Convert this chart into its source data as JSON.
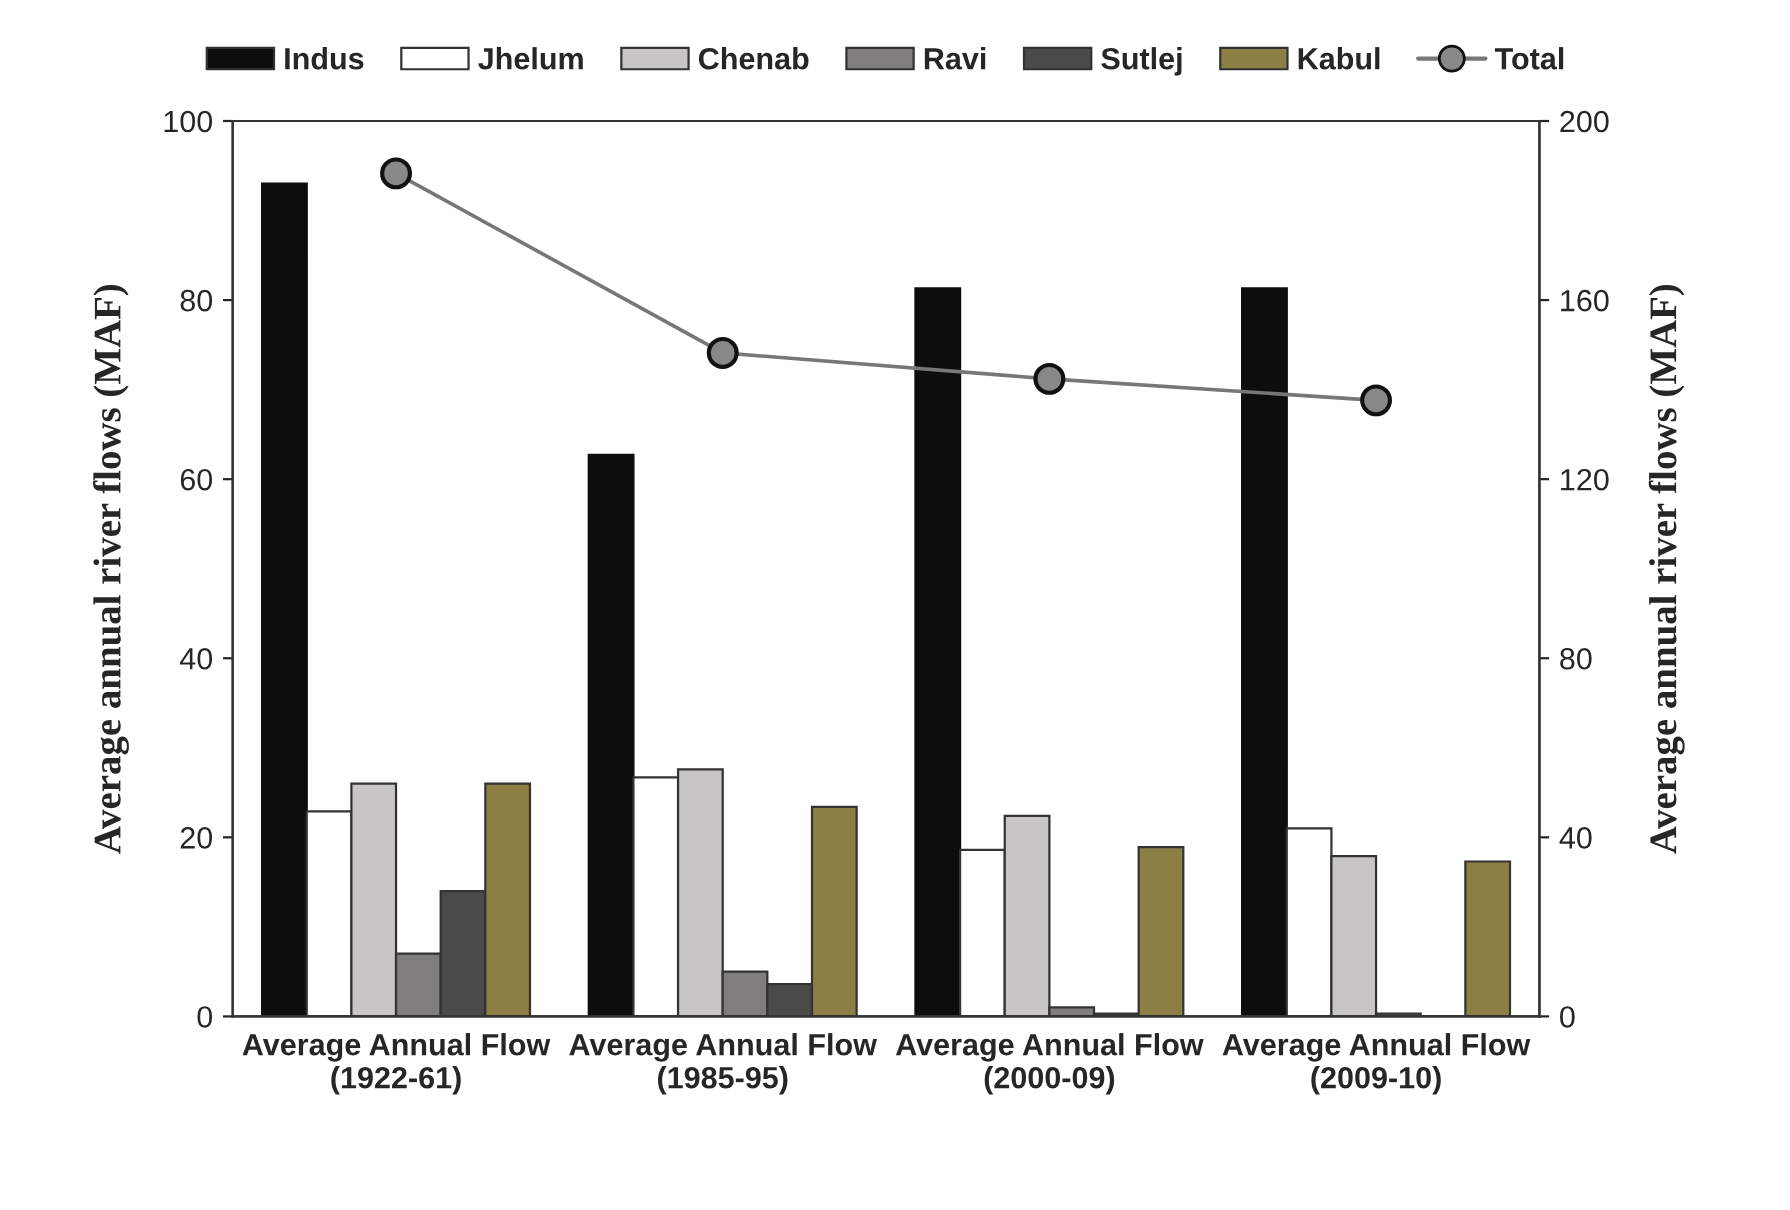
{
  "chart_data": {
    "type": "bar",
    "ylabel": "Average annual river flows (MAF)",
    "y2label": "Average annual river flows (MAF)",
    "categories": [
      "Average Annual Flow\n(1922-61)",
      "Average Annual Flow\n(1985-95)",
      "Average Annual Flow\n(2000-09)",
      "Average Annual Flow\n(2009-10)"
    ],
    "series": [
      {
        "name": "Indus",
        "color": "#0d0d0b",
        "values": [
          93,
          62.7,
          81.3,
          81.3
        ]
      },
      {
        "name": "Jhelum",
        "color": "#ffffff",
        "values": [
          22.9,
          26.7,
          18.6,
          21
        ]
      },
      {
        "name": "Chenab",
        "color": "#c8c6c4",
        "values": [
          26,
          27.6,
          22.4,
          17.9
        ]
      },
      {
        "name": "Ravi",
        "color": "#807e7c",
        "values": [
          7,
          5,
          1,
          0.3
        ]
      },
      {
        "name": "Sutlej",
        "color": "#4a4a48",
        "values": [
          14,
          3.6,
          0.3,
          0
        ]
      },
      {
        "name": "Kabul",
        "color": "#8b7f45",
        "values": [
          26,
          23.4,
          18.9,
          17.3
        ]
      },
      {
        "name": "Total",
        "type": "line",
        "axis": "y2",
        "color": "#888888",
        "marker": "circle",
        "values": [
          188.3,
          148.2,
          142.4,
          137.6
        ]
      }
    ],
    "ylim": [
      0,
      100
    ],
    "yticks": [
      0,
      20,
      40,
      60,
      80,
      100
    ],
    "y2lim": [
      0,
      200
    ],
    "y2ticks": [
      0,
      40,
      80,
      120,
      160,
      200
    ],
    "legend": "top",
    "grid": false
  }
}
